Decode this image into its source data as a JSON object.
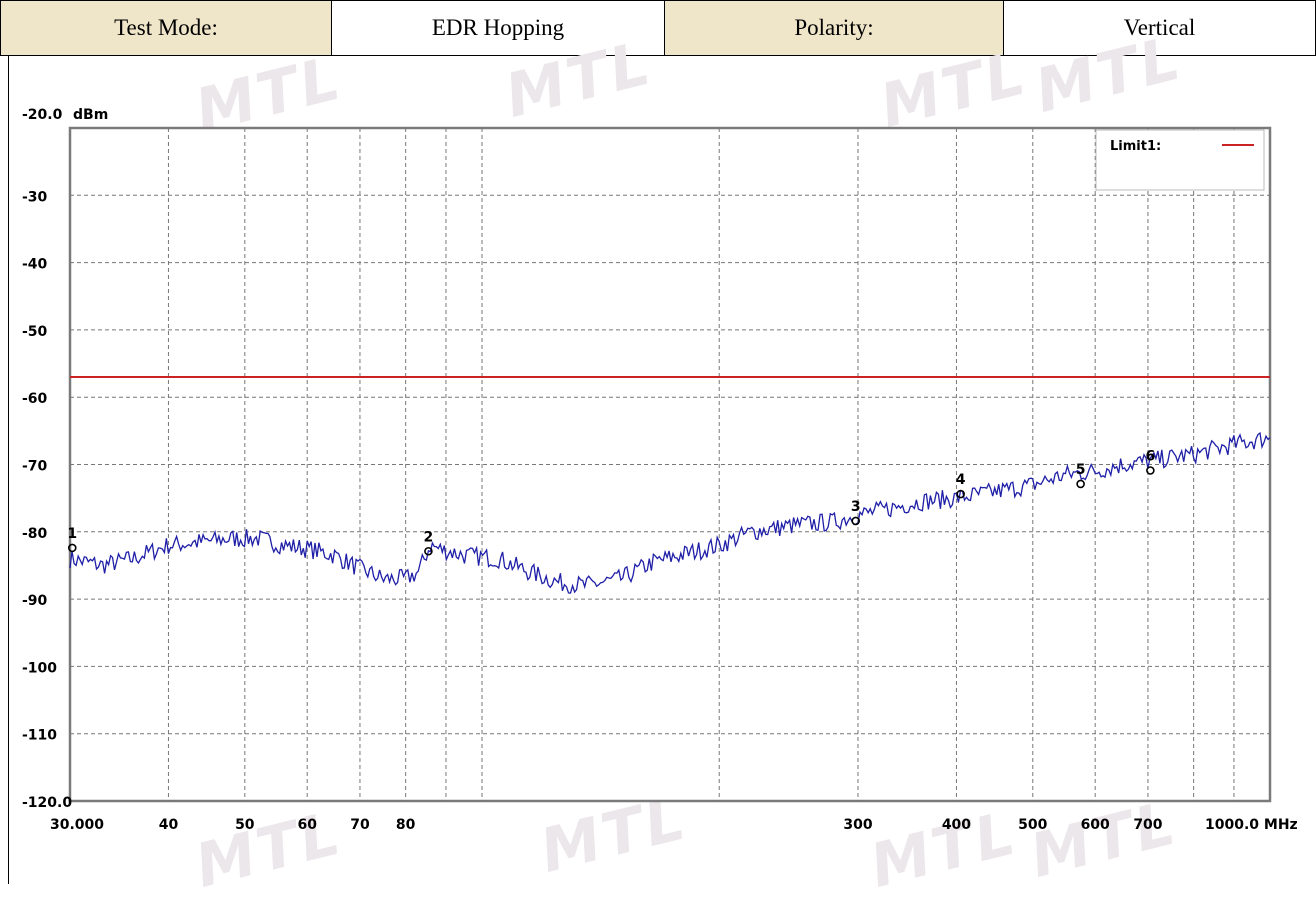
{
  "header": {
    "test_mode_label": "Test Mode:",
    "test_mode_value": "EDR Hopping",
    "polarity_label": "Polarity:",
    "polarity_value": "Vertical",
    "label_bg": "#efe5c9"
  },
  "watermark_text": "MTL",
  "chart_data": {
    "type": "line",
    "ylabel": "dBm",
    "xunit": "MHz",
    "xscale": "log",
    "xlim": [
      30,
      1000
    ],
    "ylim": [
      -120,
      -20
    ],
    "grid": true,
    "y_top_label": "-20.0",
    "y_ticks": [
      {
        "value": -20,
        "label": "-20.0"
      },
      {
        "value": -30,
        "label": "-30"
      },
      {
        "value": -40,
        "label": "-40"
      },
      {
        "value": -50,
        "label": "-50"
      },
      {
        "value": -60,
        "label": "-60"
      },
      {
        "value": -70,
        "label": "-70"
      },
      {
        "value": -80,
        "label": "-80"
      },
      {
        "value": -90,
        "label": "-90"
      },
      {
        "value": -100,
        "label": "-100"
      },
      {
        "value": -110,
        "label": "-110"
      },
      {
        "value": -120,
        "label": "-120.0"
      }
    ],
    "x_ticks": [
      {
        "value": 30,
        "label": "30.000"
      },
      {
        "value": 40,
        "label": "40"
      },
      {
        "value": 50,
        "label": "50"
      },
      {
        "value": 60,
        "label": "60"
      },
      {
        "value": 70,
        "label": "70"
      },
      {
        "value": 80,
        "label": "80"
      },
      {
        "value": 300,
        "label": "300"
      },
      {
        "value": 400,
        "label": "400"
      },
      {
        "value": 500,
        "label": "500"
      },
      {
        "value": 600,
        "label": "600"
      },
      {
        "value": 700,
        "label": "700"
      },
      {
        "value": 1000,
        "label": "1000.0 MHz"
      }
    ],
    "x_grid_extra": [
      90,
      100,
      200,
      800,
      900
    ],
    "legend": {
      "label": "Limit1:",
      "position": "top-right"
    },
    "limit": {
      "name": "Limit1",
      "value": -57,
      "color": "#cc2222"
    },
    "trace_color": "#1f1fa8",
    "trace": {
      "x": [
        30,
        33,
        36,
        40,
        44,
        48,
        52,
        56,
        60,
        65,
        70,
        75,
        80,
        83,
        86,
        88,
        95,
        105,
        115,
        125,
        135,
        150,
        165,
        185,
        200,
        220,
        250,
        280,
        300,
        330,
        360,
        400,
        450,
        500,
        550,
        600,
        650,
        700,
        800,
        900,
        1000
      ],
      "y": [
        -84,
        -85,
        -84,
        -82,
        -81.5,
        -81,
        -81,
        -82,
        -82.5,
        -83.5,
        -85.5,
        -87,
        -87,
        -86,
        -82,
        -82.5,
        -83.5,
        -84,
        -86,
        -87.5,
        -88,
        -87,
        -84.5,
        -83,
        -82,
        -80,
        -79,
        -78.5,
        -77.5,
        -76.5,
        -75.5,
        -75,
        -74,
        -73,
        -71.5,
        -71,
        -70,
        -69.5,
        -68.5,
        -67,
        -66
      ]
    },
    "markers": [
      {
        "label": "1",
        "x": 30.2,
        "y": -81.5
      },
      {
        "label": "2",
        "x": 85.5,
        "y": -82
      },
      {
        "label": "3",
        "x": 298,
        "y": -77.5
      },
      {
        "label": "4",
        "x": 405,
        "y": -73.5
      },
      {
        "label": "5",
        "x": 575,
        "y": -72
      },
      {
        "label": "6",
        "x": 705,
        "y": -70
      }
    ]
  }
}
